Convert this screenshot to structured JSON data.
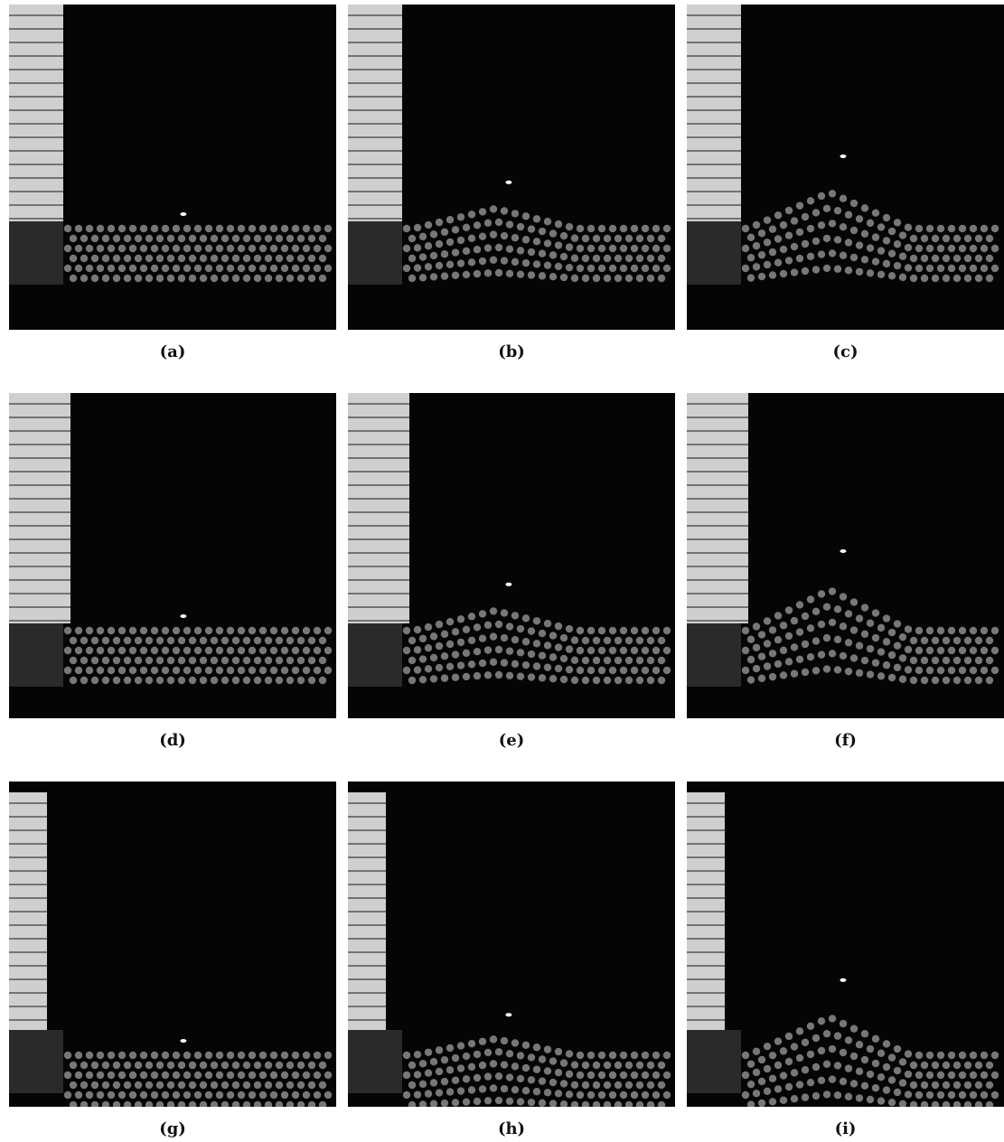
{
  "figure": {
    "panels": [
      {
        "label": "(a)"
      },
      {
        "label": "(b)"
      },
      {
        "label": "(c)"
      },
      {
        "label": "(d)"
      },
      {
        "label": "(e)"
      },
      {
        "label": "(f)"
      },
      {
        "label": "(g)"
      },
      {
        "label": "(h)"
      },
      {
        "label": "(i)"
      }
    ]
  }
}
